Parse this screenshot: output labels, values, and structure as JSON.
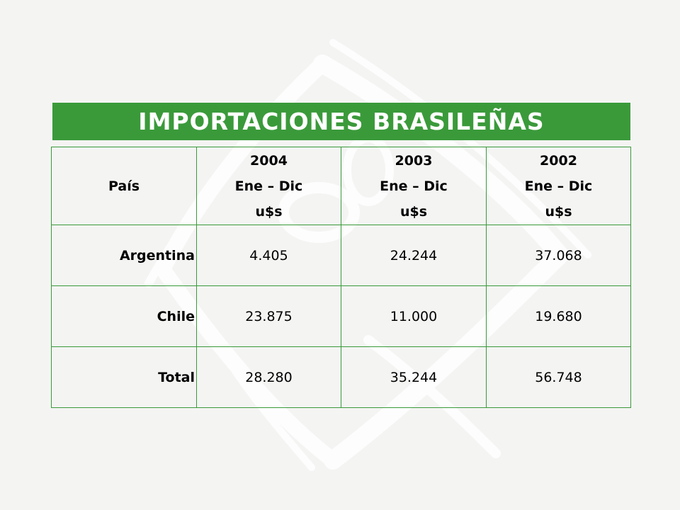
{
  "title": "IMPORTACIONES BRASILEÑAS",
  "table": {
    "headers": [
      {
        "lines": [
          "País"
        ]
      },
      {
        "lines": [
          "2004",
          "Ene – Dic",
          "u$s"
        ]
      },
      {
        "lines": [
          "2003",
          "Ene – Dic",
          "u$s"
        ]
      },
      {
        "lines": [
          "2002",
          "Ene – Dic",
          "u$s"
        ]
      }
    ],
    "rows": [
      {
        "country": "Argentina",
        "values": [
          "4.405",
          "24.244",
          "37.068"
        ]
      },
      {
        "country": "Chile",
        "values": [
          "23.875",
          "11.000",
          "19.680"
        ]
      },
      {
        "country": "Total",
        "values": [
          "28.280",
          "35.244",
          "56.748"
        ]
      }
    ]
  },
  "colors": {
    "accent": "#3a9a3a",
    "background": "#f4f4f3"
  }
}
